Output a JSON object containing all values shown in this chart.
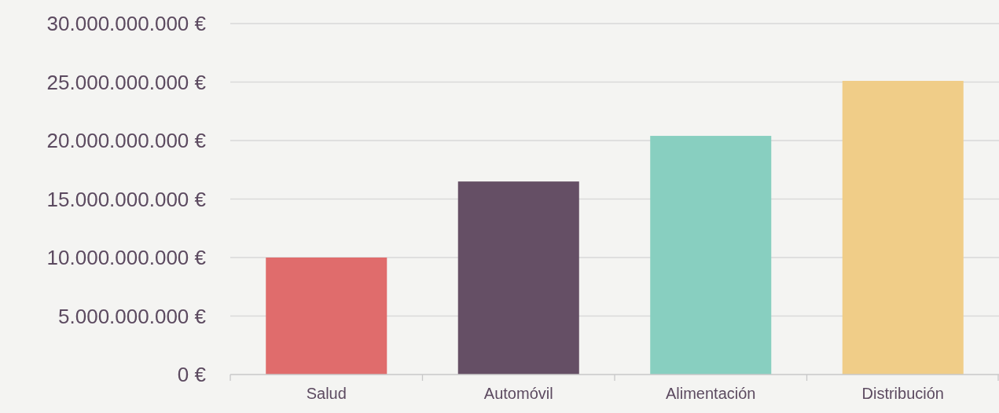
{
  "chart_data": {
    "type": "bar",
    "categories": [
      "Salud",
      "Automóvil",
      "Alimentación",
      "Distribución"
    ],
    "values": [
      10000000000,
      16500000000,
      20400000000,
      25100000000
    ],
    "colors": [
      "#e06c6c",
      "#654f65",
      "#88cfc0",
      "#f0cd88"
    ],
    "ylim": [
      0,
      30000000000
    ],
    "yticks": [
      {
        "value": 0,
        "label": "0 €"
      },
      {
        "value": 5000000000,
        "label": "5.000.000.000 €"
      },
      {
        "value": 10000000000,
        "label": "10.000.000.000 €"
      },
      {
        "value": 15000000000,
        "label": "15.000.000.000 €"
      },
      {
        "value": 20000000000,
        "label": "20.000.000.000 €"
      },
      {
        "value": 25000000000,
        "label": "25.000.000.000 €"
      },
      {
        "value": 30000000000,
        "label": "30.000.000.000 €"
      }
    ],
    "grid": "y"
  }
}
